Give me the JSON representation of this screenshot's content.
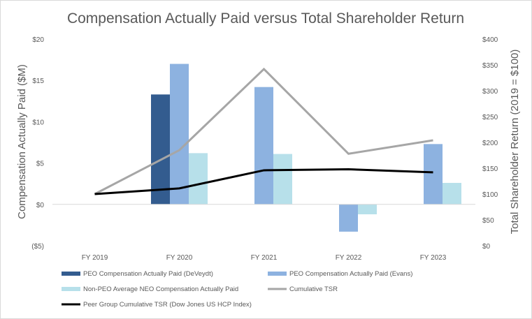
{
  "chart_data": {
    "type": "bar",
    "title": "Compensation Actually Paid versus Total Shareholder Return",
    "categories": [
      "FY 2019",
      "FY 2020",
      "FY 2021",
      "FY 2022",
      "FY 2023"
    ],
    "y_left": {
      "label": "Compensation Actually Paid ($M)",
      "range": [
        -5,
        20
      ],
      "ticks": [
        -5,
        0,
        5,
        10,
        15,
        20
      ],
      "tick_labels": [
        "($5)",
        "$0",
        "$5",
        "$10",
        "$15",
        "$20"
      ]
    },
    "y_right": {
      "label": "Total Shareholder Return (2019 = $100)",
      "range": [
        0,
        400
      ],
      "ticks": [
        0,
        50,
        100,
        150,
        200,
        250,
        300,
        350,
        400
      ],
      "tick_labels": [
        "$0",
        "$50",
        "$100",
        "$150",
        "$200",
        "$250",
        "$300",
        "$350",
        "$400"
      ]
    },
    "bar_series": [
      {
        "name": "PEO Compensation Actually Paid (DeVeydt)",
        "color": "#335c8f",
        "values": [
          null,
          13.3,
          null,
          null,
          null
        ]
      },
      {
        "name": "PEO Compensation Actually Paid (Evans)",
        "color": "#8db2e0",
        "values": [
          null,
          17.0,
          14.2,
          -3.3,
          7.3
        ]
      },
      {
        "name": "Non-PEO Average NEO Compensation Actually Paid",
        "color": "#b7e0ea",
        "values": [
          null,
          6.2,
          6.1,
          -1.2,
          2.6
        ]
      }
    ],
    "line_series": [
      {
        "name": "Cumulative TSR",
        "color": "#a6a6a6",
        "axis": "right",
        "values": [
          100,
          185,
          342,
          178,
          204
        ]
      },
      {
        "name": "Peer Group Cumulative TSR (Dow Jones US HCP Index)",
        "color": "#000000",
        "axis": "right",
        "values": [
          100,
          111,
          146,
          148,
          142
        ]
      }
    ],
    "legend": [
      {
        "label": "PEO Compensation Actually Paid (DeVeydt)",
        "kind": "bar",
        "color": "#335c8f"
      },
      {
        "label": "PEO Compensation Actually Paid (Evans)",
        "kind": "bar",
        "color": "#8db2e0"
      },
      {
        "label": "Non-PEO Average NEO Compensation Actually Paid",
        "kind": "bar",
        "color": "#b7e0ea"
      },
      {
        "label": "Cumulative TSR",
        "kind": "line",
        "color": "#a6a6a6"
      },
      {
        "label": "Peer Group Cumulative TSR (Dow Jones US HCP Index)",
        "kind": "line",
        "color": "#000000"
      }
    ],
    "legend_position": "bottom",
    "grid": false
  }
}
